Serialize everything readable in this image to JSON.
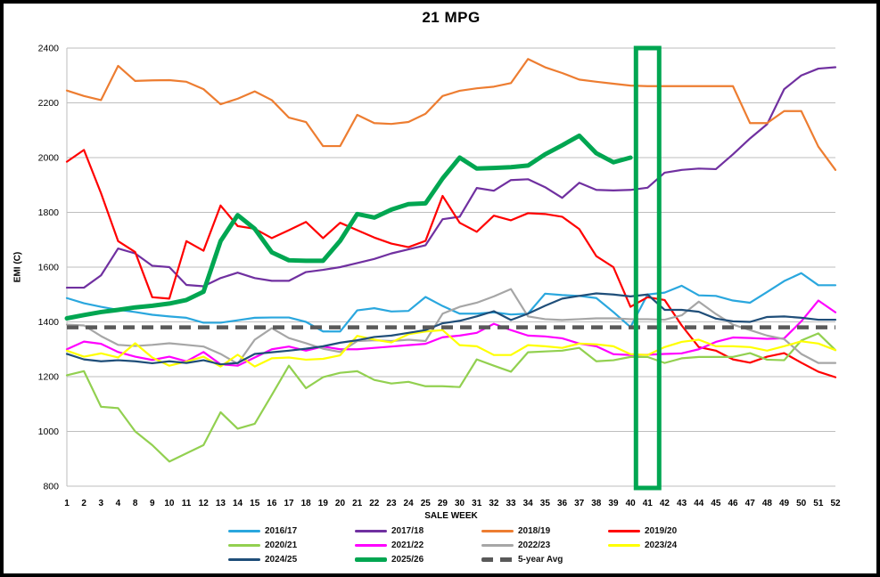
{
  "title": "21 MPG",
  "axes": {
    "x_label": "SALE WEEK",
    "y_label": "EMI (C)"
  },
  "colors": {
    "gridline": "#BEBEBE",
    "highlight_box": "#00A651",
    "tick_text": "#000000"
  },
  "chart_data": {
    "type": "line",
    "title": "21 MPG",
    "xlabel": "SALE WEEK",
    "ylabel": "EMI (C)",
    "ylim": [
      800,
      2400
    ],
    "y_ticks": [
      800,
      1000,
      1200,
      1400,
      1600,
      1800,
      2000,
      2200,
      2400
    ],
    "grid": "horizontal",
    "legend_position": "bottom",
    "categories": [
      1,
      2,
      3,
      4,
      8,
      9,
      10,
      11,
      12,
      13,
      14,
      15,
      16,
      17,
      18,
      19,
      20,
      21,
      22,
      23,
      24,
      25,
      29,
      30,
      31,
      32,
      33,
      34,
      35,
      36,
      37,
      38,
      39,
      40,
      41,
      42,
      43,
      44,
      45,
      46,
      47,
      48,
      49,
      50,
      51,
      52
    ],
    "highlight": {
      "week": 41,
      "color": "#00A651"
    },
    "series": [
      {
        "name": "2016/17",
        "color": "#2AA7DE",
        "width": 2.2,
        "dash": false,
        "values": [
          1487,
          1468,
          1455,
          1444,
          1436,
          1426,
          1420,
          1415,
          1397,
          1397,
          1406,
          1415,
          1416,
          1416,
          1400,
          1365,
          1365,
          1442,
          1450,
          1438,
          1440,
          1491,
          1458,
          1430,
          1430,
          1435,
          1427,
          1430,
          1503,
          1498,
          1495,
          1487,
          1436,
          1381,
          1500,
          1507,
          1532,
          1497,
          1495,
          1478,
          1470,
          1509,
          1549,
          1578,
          1534,
          1534
        ]
      },
      {
        "name": "2017/18",
        "color": "#7030A0",
        "width": 2.2,
        "dash": false,
        "values": [
          1525,
          1525,
          1570,
          1668,
          1650,
          1605,
          1600,
          1535,
          1530,
          1560,
          1580,
          1560,
          1550,
          1550,
          1582,
          1590,
          1600,
          1615,
          1630,
          1650,
          1665,
          1680,
          1775,
          1784,
          1889,
          1879,
          1918,
          1921,
          1892,
          1853,
          1908,
          1882,
          1880,
          1882,
          1890,
          1945,
          1955,
          1960,
          1958,
          2012,
          2070,
          2122,
          2250,
          2300,
          2325,
          2330
        ]
      },
      {
        "name": "2018/19",
        "color": "#ED7D31",
        "width": 2.2,
        "dash": false,
        "values": [
          2245,
          2225,
          2210,
          2335,
          2280,
          2282,
          2283,
          2277,
          2250,
          2195,
          2215,
          2242,
          2210,
          2146,
          2130,
          2042,
          2042,
          2156,
          2126,
          2123,
          2130,
          2160,
          2225,
          2244,
          2253,
          2259,
          2272,
          2360,
          2330,
          2309,
          2285,
          2277,
          2270,
          2263,
          2261,
          2261,
          2261,
          2261,
          2261,
          2261,
          2126,
          2126,
          2170,
          2170,
          2040,
          1955
        ]
      },
      {
        "name": "2019/20",
        "color": "#FF0000",
        "width": 2.2,
        "dash": false,
        "values": [
          1985,
          2028,
          1870,
          1695,
          1655,
          1490,
          1485,
          1695,
          1660,
          1825,
          1750,
          1740,
          1706,
          1735,
          1765,
          1706,
          1762,
          1735,
          1708,
          1686,
          1673,
          1696,
          1860,
          1762,
          1729,
          1788,
          1771,
          1797,
          1794,
          1784,
          1739,
          1640,
          1600,
          1455,
          1490,
          1480,
          1387,
          1308,
          1295,
          1263,
          1251,
          1273,
          1286,
          1251,
          1218,
          1198
        ]
      },
      {
        "name": "2020/21",
        "color": "#92D050",
        "width": 2.2,
        "dash": false,
        "values": [
          1205,
          1220,
          1090,
          1085,
          1000,
          950,
          890,
          920,
          950,
          1070,
          1010,
          1028,
          1133,
          1240,
          1158,
          1198,
          1214,
          1220,
          1188,
          1175,
          1181,
          1165,
          1165,
          1162,
          1263,
          1240,
          1218,
          1289,
          1292,
          1295,
          1305,
          1256,
          1260,
          1272,
          1272,
          1250,
          1267,
          1272,
          1272,
          1272,
          1286,
          1262,
          1260,
          1332,
          1358,
          1297
        ]
      },
      {
        "name": "2021/22",
        "color": "#FF00FF",
        "width": 2.2,
        "dash": false,
        "values": [
          1300,
          1328,
          1320,
          1290,
          1273,
          1261,
          1273,
          1256,
          1290,
          1245,
          1240,
          1270,
          1300,
          1310,
          1295,
          1310,
          1300,
          1300,
          1305,
          1310,
          1315,
          1320,
          1344,
          1350,
          1360,
          1393,
          1370,
          1350,
          1347,
          1340,
          1321,
          1311,
          1282,
          1279,
          1280,
          1283,
          1285,
          1300,
          1327,
          1343,
          1341,
          1338,
          1340,
          1402,
          1478,
          1435
        ]
      },
      {
        "name": "2022/23",
        "color": "#A6A6A6",
        "width": 2.2,
        "dash": false,
        "values": [
          1390,
          1387,
          1348,
          1316,
          1312,
          1316,
          1322,
          1316,
          1310,
          1283,
          1247,
          1335,
          1377,
          1341,
          1322,
          1302,
          1290,
          1330,
          1333,
          1330,
          1335,
          1330,
          1430,
          1455,
          1470,
          1493,
          1520,
          1420,
          1410,
          1407,
          1410,
          1413,
          1413,
          1410,
          1410,
          1408,
          1424,
          1474,
          1429,
          1390,
          1370,
          1350,
          1337,
          1283,
          1250,
          1250
        ]
      },
      {
        "name": "2023/24",
        "color": "#FFFF00",
        "width": 2.2,
        "dash": false,
        "values": [
          1295,
          1273,
          1285,
          1270,
          1322,
          1270,
          1240,
          1255,
          1273,
          1237,
          1280,
          1237,
          1267,
          1270,
          1262,
          1265,
          1278,
          1349,
          1335,
          1325,
          1355,
          1365,
          1370,
          1315,
          1311,
          1279,
          1279,
          1315,
          1311,
          1305,
          1321,
          1318,
          1311,
          1282,
          1279,
          1308,
          1327,
          1335,
          1311,
          1311,
          1308,
          1295,
          1311,
          1329,
          1321,
          1297
        ]
      },
      {
        "name": "2024/25",
        "color": "#1F4E79",
        "width": 2.2,
        "dash": false,
        "values": [
          1283,
          1263,
          1256,
          1260,
          1256,
          1249,
          1256,
          1250,
          1260,
          1245,
          1250,
          1283,
          1289,
          1295,
          1302,
          1311,
          1324,
          1333,
          1345,
          1350,
          1360,
          1370,
          1395,
          1404,
          1420,
          1439,
          1407,
          1430,
          1459,
          1485,
          1495,
          1504,
          1500,
          1493,
          1500,
          1444,
          1444,
          1437,
          1412,
          1402,
          1400,
          1418,
          1420,
          1415,
          1408,
          1408
        ]
      },
      {
        "name": "2025/26",
        "color": "#00A651",
        "width": 5,
        "dash": false,
        "values": [
          1413,
          1425,
          1436,
          1444,
          1453,
          1459,
          1467,
          1480,
          1510,
          1695,
          1790,
          1740,
          1654,
          1625,
          1623,
          1623,
          1696,
          1794,
          1781,
          1810,
          1830,
          1833,
          1924,
          2000,
          1960,
          1962,
          1965,
          1971,
          2012,
          2045,
          2080,
          2016,
          1983,
          2000,
          null,
          null,
          null,
          null,
          null,
          null,
          null,
          null,
          null,
          null,
          null,
          null
        ]
      },
      {
        "name": "5-year Avg",
        "color": "#595959",
        "width": 4.5,
        "dash": true,
        "values": [
          1380,
          1380,
          1380,
          1380,
          1380,
          1380,
          1380,
          1380,
          1380,
          1380,
          1380,
          1380,
          1380,
          1380,
          1380,
          1380,
          1380,
          1380,
          1380,
          1380,
          1380,
          1380,
          1380,
          1380,
          1380,
          1380,
          1380,
          1380,
          1380,
          1380,
          1380,
          1380,
          1380,
          1380,
          1380,
          1380,
          1380,
          1380,
          1380,
          1380,
          1380,
          1380,
          1380,
          1380,
          1380,
          1380
        ]
      }
    ]
  }
}
